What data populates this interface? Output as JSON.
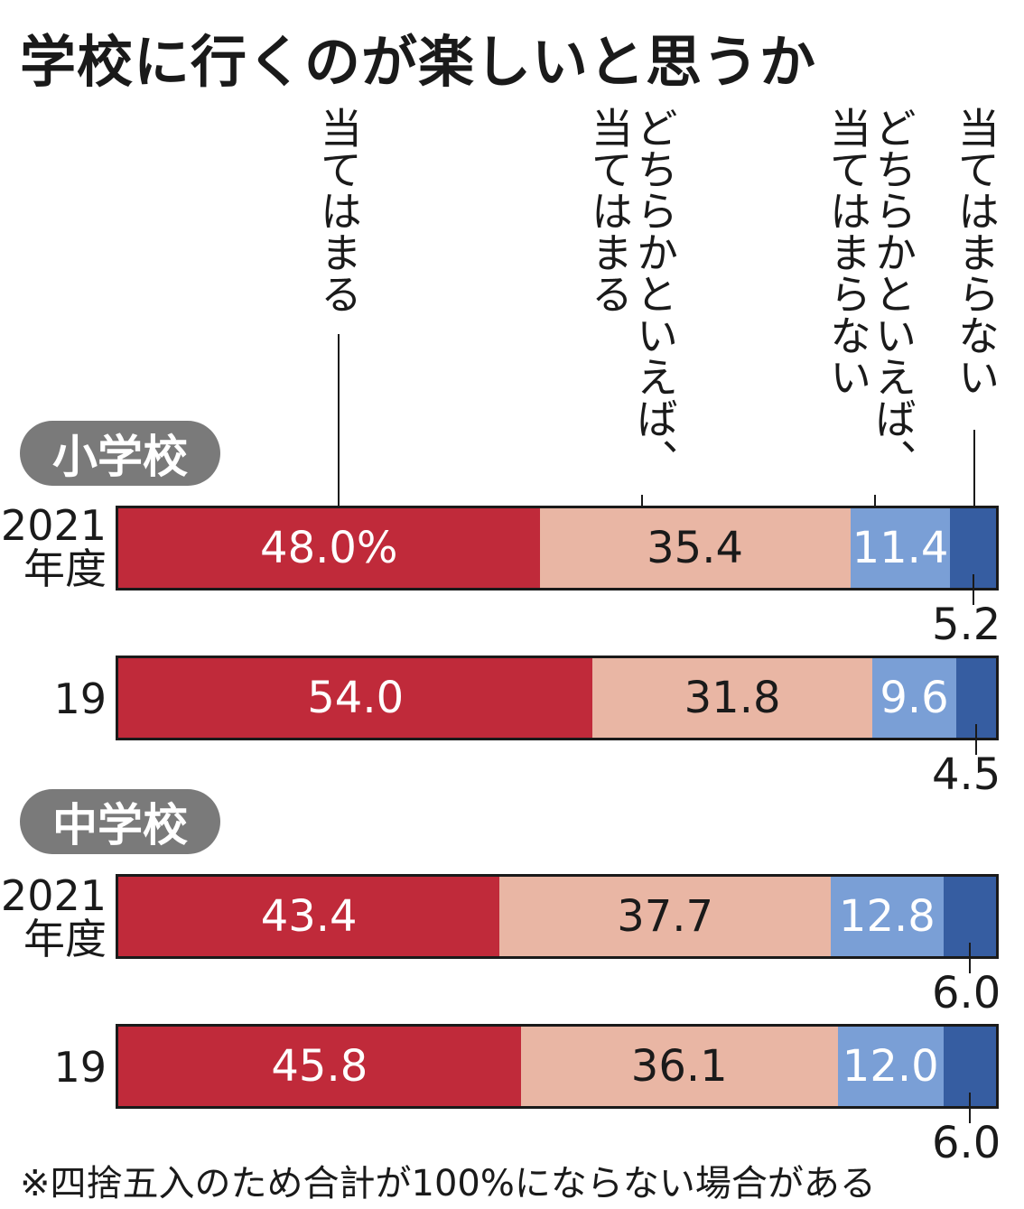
{
  "title": "学校に行くのが楽しいと思うか",
  "legend": [
    {
      "label": "当てはまる",
      "color": "#c02a3a"
    },
    {
      "label": "どちらかといえば、当てはまる",
      "color": "#e9b6a4"
    },
    {
      "label": "どちらかといえば、当てはまらない",
      "color": "#7a9fd6"
    },
    {
      "label": "当てはまらない",
      "color": "#365da1"
    }
  ],
  "groups": [
    {
      "name": "小学校",
      "rows": [
        {
          "label": "2021年度",
          "values": [
            "48.0%",
            "35.4",
            "11.4",
            "5.2"
          ]
        },
        {
          "label": "19",
          "values": [
            "54.0",
            "31.8",
            "9.6",
            "4.5"
          ]
        }
      ]
    },
    {
      "name": "中学校",
      "rows": [
        {
          "label": "2021年度",
          "values": [
            "43.4",
            "37.7",
            "12.8",
            "6.0"
          ]
        },
        {
          "label": "19",
          "values": [
            "45.8",
            "36.1",
            "12.0",
            "6.0"
          ]
        }
      ]
    }
  ],
  "chart_data": {
    "type": "bar",
    "orientation": "horizontal",
    "stacked": true,
    "title": "学校に行くのが楽しいと思うか",
    "unit": "%",
    "categories": [
      "小学校 2021年度",
      "小学校 19",
      "中学校 2021年度",
      "中学校 19"
    ],
    "series": [
      {
        "name": "当てはまる",
        "values": [
          48.0,
          54.0,
          43.4,
          45.8
        ],
        "color": "#c02a3a"
      },
      {
        "name": "どちらかといえば、当てはまる",
        "values": [
          35.4,
          31.8,
          37.7,
          36.1
        ],
        "color": "#e9b6a4"
      },
      {
        "name": "どちらかといえば、当てはまらない",
        "values": [
          11.4,
          9.6,
          12.8,
          12.0
        ],
        "color": "#7a9fd6"
      },
      {
        "name": "当てはまらない",
        "values": [
          5.2,
          4.5,
          6.0,
          6.0
        ],
        "color": "#365da1"
      }
    ],
    "legend_position": "top"
  },
  "footnote": "※四捨五入のため合計が100%にならない場合がある"
}
